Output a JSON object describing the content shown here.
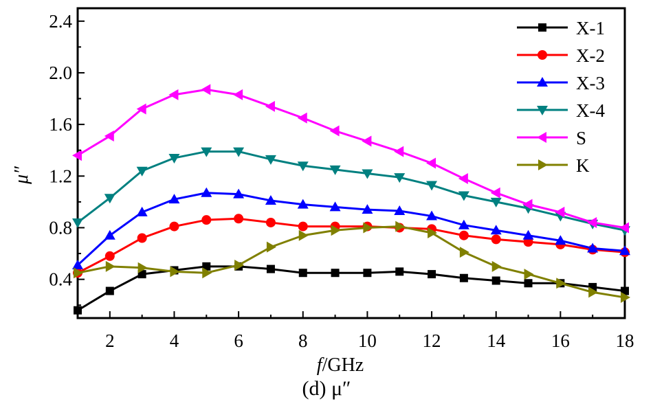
{
  "caption": "(d)  μ″",
  "chart_data": {
    "type": "line",
    "xlabel_italic": "f",
    "xlabel_rest": "/GHz",
    "ylabel": "μ″",
    "xlim": [
      1,
      18
    ],
    "ylim": [
      0.1,
      2.5
    ],
    "xticks": [
      2,
      4,
      6,
      8,
      10,
      12,
      14,
      16,
      18
    ],
    "yticks": [
      0.4,
      0.8,
      1.2,
      1.6,
      2.0,
      2.4
    ],
    "ytick_labels": [
      "0.4",
      "0.8",
      "1.2",
      "1.6",
      "2.0",
      "2.4"
    ],
    "legend_position": "top-right",
    "grid": false,
    "x": [
      1,
      2,
      3,
      4,
      5,
      6,
      7,
      8,
      9,
      10,
      11,
      12,
      13,
      14,
      15,
      16,
      17,
      18
    ],
    "series": [
      {
        "name": "X-1",
        "color": "#000000",
        "marker": "square",
        "values": [
          0.16,
          0.31,
          0.44,
          0.47,
          0.5,
          0.5,
          0.48,
          0.45,
          0.45,
          0.45,
          0.46,
          0.44,
          0.41,
          0.39,
          0.37,
          0.37,
          0.34,
          0.31
        ]
      },
      {
        "name": "X-2",
        "color": "#ff0000",
        "marker": "circle",
        "values": [
          0.45,
          0.58,
          0.72,
          0.81,
          0.86,
          0.87,
          0.84,
          0.81,
          0.81,
          0.81,
          0.8,
          0.79,
          0.74,
          0.71,
          0.69,
          0.67,
          0.63,
          0.61
        ]
      },
      {
        "name": "X-3",
        "color": "#0000ff",
        "marker": "triangle-up",
        "values": [
          0.51,
          0.74,
          0.92,
          1.02,
          1.07,
          1.06,
          1.01,
          0.98,
          0.96,
          0.94,
          0.93,
          0.89,
          0.82,
          0.78,
          0.74,
          0.7,
          0.64,
          0.62
        ]
      },
      {
        "name": "X-4",
        "color": "#008080",
        "marker": "triangle-down",
        "values": [
          0.84,
          1.03,
          1.24,
          1.34,
          1.39,
          1.39,
          1.33,
          1.28,
          1.25,
          1.22,
          1.19,
          1.13,
          1.05,
          1.0,
          0.95,
          0.89,
          0.83,
          0.78
        ]
      },
      {
        "name": "S",
        "color": "#ff00ff",
        "marker": "triangle-left",
        "values": [
          1.36,
          1.51,
          1.72,
          1.83,
          1.87,
          1.83,
          1.74,
          1.65,
          1.55,
          1.47,
          1.39,
          1.3,
          1.18,
          1.07,
          0.98,
          0.92,
          0.84,
          0.8
        ]
      },
      {
        "name": "K",
        "color": "#808000",
        "marker": "triangle-right",
        "values": [
          0.45,
          0.5,
          0.49,
          0.46,
          0.45,
          0.51,
          0.65,
          0.74,
          0.78,
          0.8,
          0.81,
          0.76,
          0.61,
          0.5,
          0.44,
          0.37,
          0.3,
          0.26
        ]
      }
    ]
  }
}
